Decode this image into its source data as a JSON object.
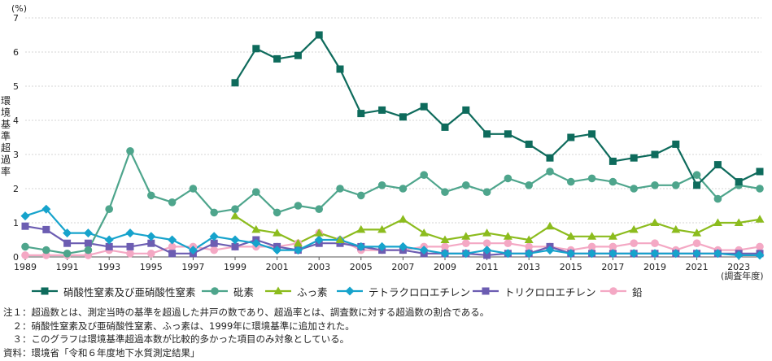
{
  "chart_data": {
    "type": "line",
    "unit_label": "(%)",
    "ylabel": "環境基準超過率",
    "xlabel": "(調査年度)",
    "ylim": [
      0,
      7
    ],
    "yticks": [
      0,
      1,
      2,
      3,
      4,
      5,
      6,
      7
    ],
    "xlim": [
      1989,
      2024
    ],
    "xticks": [
      1989,
      1991,
      1993,
      1995,
      1997,
      1999,
      2001,
      2003,
      2005,
      2007,
      2009,
      2011,
      2013,
      2015,
      2017,
      2019,
      2021,
      2023
    ],
    "grid": "horizontal",
    "legend_position": "bottom",
    "series": [
      {
        "name": "硝酸性窒素及び亜硝酸性窒素",
        "color": "#0e6b5c",
        "marker": "square",
        "x": [
          1999,
          2000,
          2001,
          2002,
          2003,
          2004,
          2005,
          2006,
          2007,
          2008,
          2009,
          2010,
          2011,
          2012,
          2013,
          2014,
          2015,
          2016,
          2017,
          2018,
          2019,
          2020,
          2021,
          2022,
          2023,
          2024
        ],
        "values": [
          5.1,
          6.1,
          5.8,
          5.9,
          6.5,
          5.5,
          4.2,
          4.3,
          4.1,
          4.4,
          3.8,
          4.3,
          3.6,
          3.6,
          3.3,
          2.9,
          3.5,
          3.6,
          2.8,
          2.9,
          3.0,
          3.3,
          2.1,
          2.7,
          2.2,
          2.5
        ]
      },
      {
        "name": "砒素",
        "color": "#4ea58c",
        "marker": "circle",
        "x": [
          1989,
          1990,
          1991,
          1992,
          1993,
          1994,
          1995,
          1996,
          1997,
          1998,
          1999,
          2000,
          2001,
          2002,
          2003,
          2004,
          2005,
          2006,
          2007,
          2008,
          2009,
          2010,
          2011,
          2012,
          2013,
          2014,
          2015,
          2016,
          2017,
          2018,
          2019,
          2020,
          2021,
          2022,
          2023,
          2024
        ],
        "values": [
          0.3,
          0.2,
          0.1,
          0.2,
          1.4,
          3.1,
          1.8,
          1.6,
          2.0,
          1.3,
          1.4,
          1.9,
          1.3,
          1.5,
          1.4,
          2.0,
          1.8,
          2.1,
          2.0,
          2.4,
          1.9,
          2.1,
          1.9,
          2.3,
          2.1,
          2.5,
          2.2,
          2.3,
          2.2,
          2.0,
          2.1,
          2.1,
          2.4,
          1.7,
          2.1,
          2.0
        ]
      },
      {
        "name": "ふっ素",
        "color": "#8cbc1e",
        "marker": "triangle",
        "x": [
          1999,
          2000,
          2001,
          2002,
          2003,
          2004,
          2005,
          2006,
          2007,
          2008,
          2009,
          2010,
          2011,
          2012,
          2013,
          2014,
          2015,
          2016,
          2017,
          2018,
          2019,
          2020,
          2021,
          2022,
          2023,
          2024
        ],
        "values": [
          1.2,
          0.8,
          0.7,
          0.4,
          0.7,
          0.5,
          0.8,
          0.8,
          1.1,
          0.7,
          0.5,
          0.6,
          0.7,
          0.6,
          0.5,
          0.9,
          0.6,
          0.6,
          0.6,
          0.8,
          1.0,
          0.8,
          0.7,
          1.0,
          1.0,
          1.1
        ]
      },
      {
        "name": "テトラクロロエチレン",
        "color": "#16a3cc",
        "marker": "diamond",
        "x": [
          1989,
          1990,
          1991,
          1992,
          1993,
          1994,
          1995,
          1996,
          1997,
          1998,
          1999,
          2000,
          2001,
          2002,
          2003,
          2004,
          2005,
          2006,
          2007,
          2008,
          2009,
          2010,
          2011,
          2012,
          2013,
          2014,
          2015,
          2016,
          2017,
          2018,
          2019,
          2020,
          2021,
          2022,
          2023,
          2024
        ],
        "values": [
          1.2,
          1.4,
          0.7,
          0.7,
          0.5,
          0.7,
          0.6,
          0.5,
          0.2,
          0.6,
          0.5,
          0.4,
          0.2,
          0.2,
          0.5,
          0.5,
          0.3,
          0.3,
          0.3,
          0.2,
          0.1,
          0.1,
          0.2,
          0.1,
          0.1,
          0.2,
          0.1,
          0.1,
          0.1,
          0.1,
          0.1,
          0.1,
          0.1,
          0.1,
          0.05,
          0.05
        ]
      },
      {
        "name": "トリクロロエチレン",
        "color": "#6c5db2",
        "marker": "square",
        "x": [
          1989,
          1990,
          1991,
          1992,
          1993,
          1994,
          1995,
          1996,
          1997,
          1998,
          1999,
          2000,
          2001,
          2002,
          2003,
          2004,
          2005,
          2006,
          2007,
          2008,
          2009,
          2010,
          2011,
          2012,
          2013,
          2014,
          2015,
          2016,
          2017,
          2018,
          2019,
          2020,
          2021,
          2022,
          2023,
          2024
        ],
        "values": [
          0.9,
          0.8,
          0.4,
          0.4,
          0.3,
          0.3,
          0.4,
          0.1,
          0.1,
          0.4,
          0.3,
          0.5,
          0.3,
          0.2,
          0.4,
          0.4,
          0.3,
          0.2,
          0.2,
          0.1,
          0.1,
          0.1,
          0.05,
          0.1,
          0.1,
          0.3,
          0.1,
          0.1,
          0.1,
          0.1,
          0.1,
          0.1,
          0.1,
          0.1,
          0.1,
          0.1
        ]
      },
      {
        "name": "鉛",
        "color": "#f4a8c4",
        "marker": "circle",
        "x": [
          1989,
          1990,
          1991,
          1992,
          1993,
          1994,
          1995,
          1996,
          1997,
          1998,
          1999,
          2000,
          2001,
          2002,
          2003,
          2004,
          2005,
          2006,
          2007,
          2008,
          2009,
          2010,
          2011,
          2012,
          2013,
          2014,
          2015,
          2016,
          2017,
          2018,
          2019,
          2020,
          2021,
          2022,
          2023,
          2024
        ],
        "values": [
          0.05,
          0.05,
          0.05,
          0.05,
          0.2,
          0.1,
          0.1,
          0.3,
          0.3,
          0.2,
          0.3,
          0.3,
          0.3,
          0.4,
          0.7,
          0.5,
          0.2,
          0.2,
          0.2,
          0.3,
          0.3,
          0.4,
          0.4,
          0.4,
          0.3,
          0.3,
          0.2,
          0.3,
          0.3,
          0.4,
          0.4,
          0.2,
          0.4,
          0.2,
          0.2,
          0.3
        ]
      }
    ]
  },
  "notes": [
    "注１：超過数とは、測定当時の基準を超過した井戸の数であり、超過率とは、調査数に対する超過数の割合である。",
    "　２：硝酸性窒素及び亜硝酸性窒素、ふっ素は、1999年に環境基準に追加された。",
    "　３：このグラフは環境基準超過本数が比較的多かった項目のみ対象としている。",
    "資料：環境省「令和６年度地下水質測定結果」"
  ]
}
